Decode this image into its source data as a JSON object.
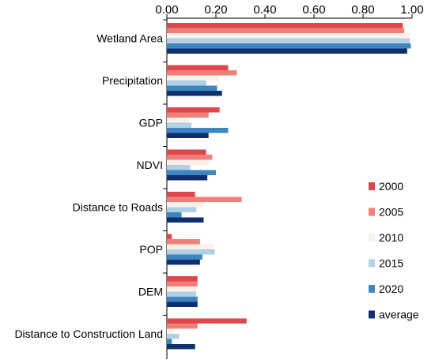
{
  "chart_data": {
    "type": "bar",
    "orientation": "horizontal",
    "x_axis_position": "top",
    "xlim": [
      0,
      1
    ],
    "x_ticks": [
      "0.00",
      "0.20",
      "0.40",
      "0.60",
      "0.80",
      "1.00"
    ],
    "categories": [
      "Wetland Area",
      "Precipitation",
      "GDP",
      "NDVI",
      "Distance to Roads",
      "POP",
      "DEM",
      "Distance to Construction Land"
    ],
    "series": [
      {
        "name": "2000",
        "color": "#e0474c",
        "values": [
          0.962,
          0.25,
          0.215,
          0.16,
          0.115,
          0.02,
          0.125,
          0.325
        ]
      },
      {
        "name": "2005",
        "color": "#f07f7a",
        "values": [
          0.968,
          0.285,
          0.17,
          0.185,
          0.305,
          0.135,
          0.125,
          0.125
        ]
      },
      {
        "name": "2010",
        "color": "#fdefe9",
        "values": [
          0.99,
          0.215,
          0.09,
          0.17,
          0.15,
          0.19,
          0.12,
          0.025
        ]
      },
      {
        "name": "2015",
        "color": "#b0d0e6",
        "values": [
          0.99,
          0.16,
          0.1,
          0.095,
          0.12,
          0.195,
          0.12,
          0.05
        ]
      },
      {
        "name": "2020",
        "color": "#3f86c0",
        "values": [
          0.995,
          0.205,
          0.25,
          0.2,
          0.06,
          0.145,
          0.125,
          0.02
        ]
      },
      {
        "name": "average",
        "color": "#0f2f6e",
        "values": [
          0.98,
          0.225,
          0.17,
          0.165,
          0.15,
          0.135,
          0.125,
          0.115
        ]
      }
    ],
    "legend_position": "right"
  }
}
